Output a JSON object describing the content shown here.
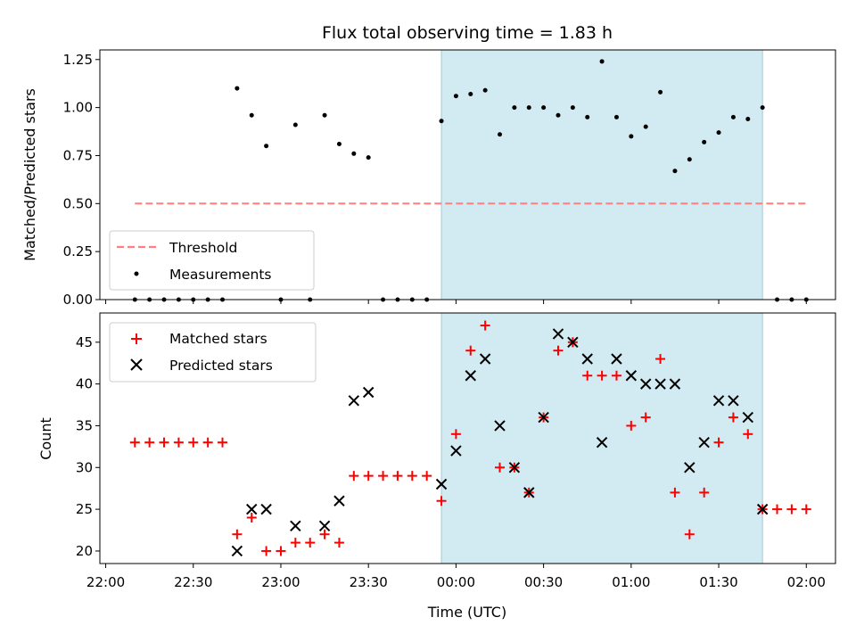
{
  "chart_data": [
    {
      "type": "scatter",
      "title": "Flux total observing time = 1.83 h",
      "xlabel": "",
      "ylabel": "Matched/Predicted stars",
      "xlim": [
        "21:58",
        "02:10"
      ],
      "ylim": [
        0,
        1.3
      ],
      "yticks": [
        "0.00",
        "0.25",
        "0.50",
        "0.75",
        "1.00",
        "1.25"
      ],
      "grid": false,
      "legend_position": "lower-left",
      "shaded_span": {
        "from": "23:55",
        "to": "01:45",
        "color": "#add8e6"
      },
      "series": [
        {
          "name": "Threshold",
          "style": "dashed-line",
          "color": "#ff7f7f",
          "x": [
            "22:10",
            "02:00"
          ],
          "y": [
            0.5,
            0.5
          ]
        },
        {
          "name": "Measurements",
          "style": "dot",
          "color": "#000000",
          "x": [
            "22:10",
            "22:15",
            "22:20",
            "22:25",
            "22:30",
            "22:35",
            "22:40",
            "22:45",
            "22:50",
            "22:55",
            "23:00",
            "23:05",
            "23:10",
            "23:15",
            "23:20",
            "23:25",
            "23:30",
            "23:35",
            "23:40",
            "23:45",
            "23:50",
            "23:55",
            "23:60",
            "00:05",
            "00:10",
            "00:15",
            "00:20",
            "00:25",
            "00:30",
            "00:35",
            "00:40",
            "00:45",
            "00:50",
            "00:55",
            "01:00",
            "01:05",
            "01:10",
            "01:15",
            "01:20",
            "01:25",
            "01:30",
            "01:35",
            "01:40",
            "01:45",
            "01:50",
            "01:55",
            "02:00"
          ],
          "y": [
            0,
            0,
            0,
            0,
            0,
            0,
            0,
            1.1,
            0.96,
            0.8,
            0,
            0.91,
            0,
            0.96,
            0.81,
            0.76,
            0.74,
            0,
            0,
            0,
            0,
            0.93,
            1.06,
            1.07,
            1.09,
            0.86,
            1.0,
            1.0,
            1.0,
            0.96,
            1.0,
            0.95,
            1.24,
            0.95,
            0.85,
            0.9,
            1.08,
            0.67,
            0.73,
            0.82,
            0.87,
            0.95,
            0.94,
            1.0,
            0,
            0,
            0
          ]
        }
      ]
    },
    {
      "type": "scatter",
      "title": "",
      "xlabel": "Time (UTC)",
      "ylabel": "Count",
      "xlim": [
        "21:58",
        "02:10"
      ],
      "ylim": [
        18.5,
        48.5
      ],
      "xticks": [
        "22:00",
        "22:30",
        "23:00",
        "23:30",
        "00:00",
        "00:30",
        "01:00",
        "01:30",
        "02:00"
      ],
      "yticks": [
        "20",
        "25",
        "30",
        "35",
        "40",
        "45"
      ],
      "grid": false,
      "legend_position": "upper-left",
      "shaded_span": {
        "from": "23:55",
        "to": "01:45",
        "color": "#add8e6"
      },
      "series": [
        {
          "name": "Matched stars",
          "marker": "+",
          "color": "#ff0000",
          "x": [
            "22:10",
            "22:15",
            "22:20",
            "22:25",
            "22:30",
            "22:35",
            "22:40",
            "22:45",
            "22:50",
            "22:55",
            "23:00",
            "23:05",
            "23:10",
            "23:15",
            "23:20",
            "23:25",
            "23:30",
            "23:35",
            "23:40",
            "23:45",
            "23:50",
            "23:55",
            "00:00",
            "00:05",
            "00:10",
            "00:15",
            "00:20",
            "00:25",
            "00:30",
            "00:35",
            "00:40",
            "00:45",
            "00:50",
            "00:55",
            "01:00",
            "01:05",
            "01:10",
            "01:15",
            "01:20",
            "01:25",
            "01:30",
            "01:35",
            "01:40",
            "01:45",
            "01:50",
            "01:55",
            "02:00"
          ],
          "y": [
            33,
            33,
            33,
            33,
            33,
            33,
            33,
            22,
            24,
            20,
            20,
            21,
            21,
            22,
            21,
            29,
            29,
            29,
            29,
            29,
            29,
            26,
            34,
            44,
            47,
            30,
            30,
            27,
            36,
            44,
            45,
            41,
            41,
            41,
            35,
            36,
            43,
            27,
            22,
            27,
            33,
            36,
            34,
            25,
            25,
            25,
            25
          ]
        },
        {
          "name": "Predicted stars",
          "marker": "x",
          "color": "#000000",
          "x": [
            "22:45",
            "22:50",
            "22:55",
            "23:05",
            "23:15",
            "23:20",
            "23:25",
            "23:30",
            "23:55",
            "00:00",
            "00:05",
            "00:10",
            "00:15",
            "00:20",
            "00:25",
            "00:30",
            "00:35",
            "00:40",
            "00:45",
            "00:50",
            "00:55",
            "01:00",
            "01:05",
            "01:10",
            "01:15",
            "01:20",
            "01:25",
            "01:30",
            "01:35",
            "01:40",
            "01:45"
          ],
          "y": [
            20,
            25,
            25,
            23,
            23,
            26,
            38,
            39,
            28,
            32,
            41,
            43,
            35,
            30,
            27,
            36,
            46,
            45,
            43,
            33,
            43,
            41,
            40,
            40,
            40,
            30,
            33,
            38,
            38,
            36,
            25
          ]
        }
      ]
    }
  ]
}
